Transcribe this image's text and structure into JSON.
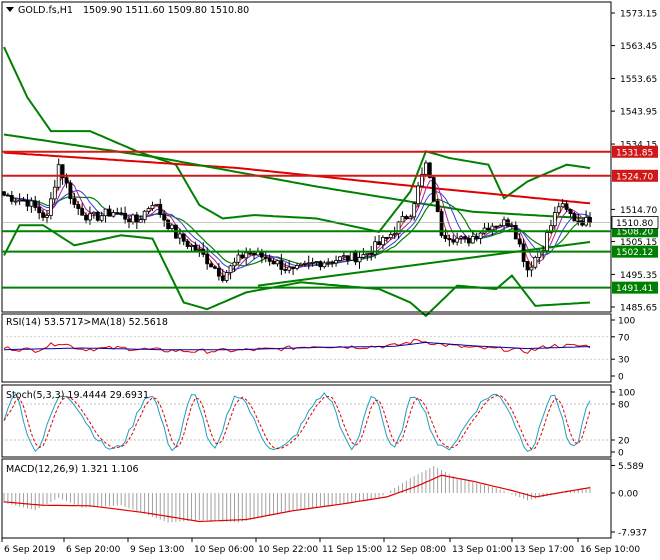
{
  "header": {
    "symbol": "GOLD.fs,H1",
    "ohlc": "1509.90 1511.60 1509.80 1510.80"
  },
  "colors": {
    "background": "#ffffff",
    "frame": "#000000",
    "candle_up": "#ffffff",
    "candle_down": "#000000",
    "bollinger": "#008000",
    "ma_red": "#e00000",
    "ma_green": "#008000",
    "ma_short_blue": "#3b3bd8",
    "ma_short_purple": "#a020a0",
    "ma_short_red": "#e03030",
    "level_line_red": "#d01818",
    "level_line_green": "#008000",
    "level_label_red_bg": "#d01818",
    "level_label_green_bg": "#008000",
    "price_box_bg": "#ffffff",
    "rsi": "#e00000",
    "rsi_ma": "#0000aa",
    "stoch_main": "#20a0c0",
    "stoch_signal": "#e00000",
    "macd_hist": "#a0a0a0",
    "macd_signal": "#e00000"
  },
  "main_axis": {
    "ticks": [
      "1573.15",
      "1563.45",
      "1553.65",
      "1543.95",
      "1534.15",
      "1514.70",
      "1505.15",
      "1495.35",
      "1485.65"
    ],
    "tick_values": [
      1573.15,
      1563.45,
      1553.65,
      1543.95,
      1534.15,
      1514.7,
      1505.15,
      1495.35,
      1485.65
    ]
  },
  "levels": [
    {
      "label": "1531.85",
      "value": 1531.85,
      "kind": "red"
    },
    {
      "label": "1524.70",
      "value": 1524.7,
      "kind": "red"
    },
    {
      "label": "1508.20",
      "value": 1508.2,
      "kind": "green"
    },
    {
      "label": "1502.12",
      "value": 1502.12,
      "kind": "green"
    },
    {
      "label": "1491.41",
      "value": 1491.41,
      "kind": "green"
    }
  ],
  "current_price": {
    "label": "1510.80",
    "value": 1510.8
  },
  "x_axis": {
    "labels": [
      "6 Sep 2019",
      "6 Sep 20:00",
      "9 Sep 13:00",
      "10 Sep 06:00",
      "10 Sep 22:00",
      "11 Sep 15:00",
      "12 Sep 08:00",
      "13 Sep 01:00",
      "13 Sep 17:00",
      "16 Sep 10:00"
    ]
  },
  "rsi": {
    "header": "RSI(14) 53.5717",
    "header_ma": "->MA(18) 52.5618",
    "ticks": [
      "100",
      "70",
      "30",
      "0"
    ],
    "tick_values": [
      100,
      70,
      30,
      0
    ]
  },
  "stoch": {
    "header": "Stoch(5,3,3) 19.4444 29.6931",
    "ticks": [
      "100",
      "80",
      "20",
      "0"
    ],
    "tick_values": [
      100,
      80,
      20,
      0
    ]
  },
  "macd": {
    "header": "MACD(12,26,9) 1.321 1.106",
    "ticks": [
      "5.589",
      "0.00",
      "-7.937"
    ],
    "tick_values": [
      5.589,
      0,
      -7.937
    ]
  },
  "chart_data": {
    "type": "candlestick",
    "symbol": "GOLD.fs",
    "timeframe": "H1",
    "close_anchors": [
      {
        "bar": 0,
        "close": 1519
      },
      {
        "bar": 6,
        "close": 1517
      },
      {
        "bar": 11,
        "close": 1512
      },
      {
        "bar": 14,
        "close": 1528
      },
      {
        "bar": 18,
        "close": 1516
      },
      {
        "bar": 22,
        "close": 1512
      },
      {
        "bar": 28,
        "close": 1514
      },
      {
        "bar": 34,
        "close": 1511
      },
      {
        "bar": 38,
        "close": 1517
      },
      {
        "bar": 44,
        "close": 1507
      },
      {
        "bar": 50,
        "close": 1502
      },
      {
        "bar": 56,
        "close": 1495
      },
      {
        "bar": 62,
        "close": 1502
      },
      {
        "bar": 68,
        "close": 1500
      },
      {
        "bar": 74,
        "close": 1496
      },
      {
        "bar": 80,
        "close": 1499
      },
      {
        "bar": 86,
        "close": 1500
      },
      {
        "bar": 92,
        "close": 1501
      },
      {
        "bar": 98,
        "close": 1506
      },
      {
        "bar": 104,
        "close": 1514
      },
      {
        "bar": 108,
        "close": 1528
      },
      {
        "bar": 112,
        "close": 1508
      },
      {
        "bar": 118,
        "close": 1505
      },
      {
        "bar": 124,
        "close": 1510
      },
      {
        "bar": 130,
        "close": 1511
      },
      {
        "bar": 134,
        "close": 1497
      },
      {
        "bar": 138,
        "close": 1504
      },
      {
        "bar": 142,
        "close": 1516
      },
      {
        "bar": 146,
        "close": 1512
      },
      {
        "bar": 150,
        "close": 1510.8
      }
    ],
    "ma_long_red": [
      [
        0,
        1531.6
      ],
      [
        60,
        1527
      ],
      [
        110,
        1521
      ],
      [
        150,
        1516.5
      ]
    ],
    "ma_long_green": [
      [
        0,
        1537
      ],
      [
        40,
        1530
      ],
      [
        80,
        1521.5
      ],
      [
        120,
        1514
      ],
      [
        150,
        1512
      ]
    ],
    "bollinger_upper": [
      [
        0,
        1563
      ],
      [
        6,
        1548
      ],
      [
        12,
        1538
      ],
      [
        22,
        1538
      ],
      [
        34,
        1532
      ],
      [
        44,
        1528
      ],
      [
        50,
        1516
      ],
      [
        56,
        1512
      ],
      [
        64,
        1513
      ],
      [
        80,
        1512
      ],
      [
        96,
        1508
      ],
      [
        104,
        1520
      ],
      [
        108,
        1532
      ],
      [
        114,
        1530
      ],
      [
        124,
        1528
      ],
      [
        128,
        1518
      ],
      [
        134,
        1523
      ],
      [
        140,
        1526
      ],
      [
        144,
        1528
      ],
      [
        150,
        1527
      ]
    ],
    "bollinger_lower": [
      [
        0,
        1501
      ],
      [
        4,
        1510
      ],
      [
        10,
        1510
      ],
      [
        18,
        1504
      ],
      [
        30,
        1507
      ],
      [
        38,
        1506
      ],
      [
        46,
        1487
      ],
      [
        52,
        1485
      ],
      [
        62,
        1490
      ],
      [
        76,
        1493
      ],
      [
        96,
        1491
      ],
      [
        104,
        1487
      ],
      [
        108,
        1483
      ],
      [
        116,
        1492
      ],
      [
        126,
        1491
      ],
      [
        130,
        1495
      ],
      [
        136,
        1486
      ],
      [
        150,
        1487
      ]
    ],
    "trendline": {
      "from": [
        65,
        1492
      ],
      "to": [
        150,
        1505
      ]
    },
    "rsi_series": [
      [
        0,
        50
      ],
      [
        8,
        46
      ],
      [
        14,
        60
      ],
      [
        20,
        48
      ],
      [
        30,
        50
      ],
      [
        40,
        46
      ],
      [
        50,
        44
      ],
      [
        60,
        46
      ],
      [
        70,
        48
      ],
      [
        80,
        54
      ],
      [
        90,
        52
      ],
      [
        100,
        54
      ],
      [
        106,
        64
      ],
      [
        112,
        56
      ],
      [
        120,
        50
      ],
      [
        128,
        48
      ],
      [
        134,
        44
      ],
      [
        140,
        54
      ],
      [
        150,
        53.57
      ]
    ],
    "rsi_ma_series": [
      [
        0,
        47
      ],
      [
        20,
        50
      ],
      [
        40,
        47
      ],
      [
        60,
        47
      ],
      [
        80,
        51
      ],
      [
        100,
        53
      ],
      [
        108,
        60
      ],
      [
        120,
        54
      ],
      [
        134,
        49
      ],
      [
        150,
        52.56
      ]
    ],
    "macd_hist_series": [
      [
        0,
        -2
      ],
      [
        8,
        -3.5
      ],
      [
        14,
        -1
      ],
      [
        20,
        -3
      ],
      [
        30,
        -2.5
      ],
      [
        42,
        -6
      ],
      [
        50,
        -5.5
      ],
      [
        60,
        -6
      ],
      [
        72,
        -4
      ],
      [
        84,
        -2.5
      ],
      [
        96,
        -1
      ],
      [
        104,
        3
      ],
      [
        110,
        5.5
      ],
      [
        116,
        3
      ],
      [
        126,
        1
      ],
      [
        134,
        -1.5
      ],
      [
        140,
        -0.5
      ],
      [
        150,
        1.3
      ]
    ],
    "macd_signal_series": [
      [
        0,
        -1.8
      ],
      [
        10,
        -2.5
      ],
      [
        22,
        -2.6
      ],
      [
        36,
        -4
      ],
      [
        50,
        -5.8
      ],
      [
        62,
        -5.4
      ],
      [
        74,
        -3.6
      ],
      [
        86,
        -2.3
      ],
      [
        98,
        -0.8
      ],
      [
        106,
        1.5
      ],
      [
        112,
        3.6
      ],
      [
        120,
        2.4
      ],
      [
        130,
        0.5
      ],
      [
        136,
        -0.8
      ],
      [
        144,
        0.3
      ],
      [
        150,
        1.1
      ]
    ]
  }
}
